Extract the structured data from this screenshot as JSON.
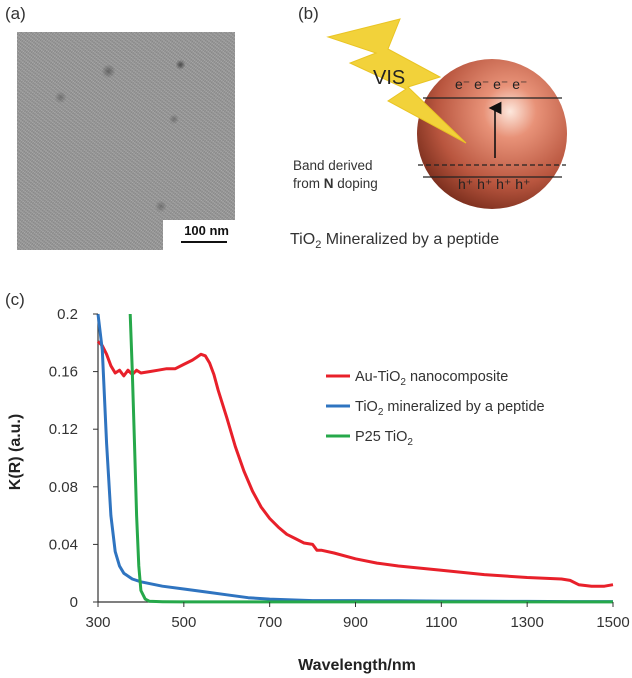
{
  "panels": {
    "a": "(a)",
    "b": "(b)",
    "c": "(c)"
  },
  "tem": {
    "scale_bar": "100 nm"
  },
  "schematic": {
    "light_label": "VIS",
    "band_text_1": "Band derived",
    "band_text_2_pre": "from ",
    "band_text_2_bold": "N",
    "band_text_2_post": " doping",
    "electrons": "e⁻ e⁻ e⁻ e⁻",
    "holes": "h⁺ h⁺ h⁺ h⁺",
    "caption_pre": "TiO",
    "caption_sub": "2",
    "caption_post": " Mineralized by a peptide",
    "colors": {
      "lightning": "#f2d23a",
      "sphere": "#c8604a"
    }
  },
  "chart_data": {
    "type": "line",
    "xlabel": "Wavelength/nm",
    "ylabel": "K(R) (a.u.)",
    "xlim": [
      300,
      1500
    ],
    "ylim": [
      0,
      0.2
    ],
    "xticks": [
      "300",
      "500",
      "700",
      "900",
      "1100",
      "1300",
      "1500"
    ],
    "yticks": [
      "0",
      "0.04",
      "0.08",
      "0.12",
      "0.16",
      "0.2"
    ],
    "grid": false,
    "legend_position": "right",
    "series": [
      {
        "name": "Au-TiO2 nanocomposite",
        "color": "#e8202a",
        "x": [
          300,
          310,
          320,
          330,
          340,
          350,
          360,
          370,
          380,
          390,
          400,
          420,
          440,
          460,
          480,
          500,
          520,
          530,
          540,
          550,
          560,
          570,
          580,
          600,
          620,
          640,
          660,
          680,
          700,
          720,
          740,
          760,
          780,
          800,
          810,
          820,
          850,
          900,
          950,
          1000,
          1100,
          1200,
          1300,
          1380,
          1400,
          1420,
          1450,
          1480,
          1500
        ],
        "y": [
          0.181,
          0.178,
          0.172,
          0.164,
          0.159,
          0.161,
          0.157,
          0.161,
          0.158,
          0.161,
          0.159,
          0.16,
          0.161,
          0.162,
          0.162,
          0.165,
          0.168,
          0.17,
          0.172,
          0.171,
          0.166,
          0.158,
          0.147,
          0.128,
          0.108,
          0.091,
          0.077,
          0.066,
          0.058,
          0.052,
          0.047,
          0.044,
          0.041,
          0.04,
          0.036,
          0.036,
          0.034,
          0.03,
          0.027,
          0.025,
          0.022,
          0.019,
          0.017,
          0.016,
          0.015,
          0.012,
          0.011,
          0.011,
          0.012
        ]
      },
      {
        "name": "TiO2 mineralized by a peptide",
        "color": "#2f74c0",
        "x": [
          300,
          310,
          320,
          330,
          340,
          350,
          360,
          380,
          400,
          450,
          500,
          550,
          600,
          650,
          700,
          800,
          900,
          1000,
          1100,
          1200,
          1300,
          1400,
          1500
        ],
        "y": [
          0.2,
          0.175,
          0.11,
          0.06,
          0.035,
          0.025,
          0.02,
          0.016,
          0.014,
          0.011,
          0.009,
          0.007,
          0.005,
          0.003,
          0.002,
          0.001,
          0.001,
          0.0008,
          0.0006,
          0.0005,
          0.0004,
          0.0003,
          0.0003
        ]
      },
      {
        "name": "P25 TiO2",
        "color": "#26a84a",
        "x": [
          375,
          380,
          385,
          390,
          395,
          400,
          410,
          420,
          450,
          500,
          600,
          800,
          1000,
          1200,
          1500
        ],
        "y": [
          0.2,
          0.16,
          0.11,
          0.06,
          0.025,
          0.008,
          0.002,
          0.0005,
          0.0002,
          0.0001,
          0.0001,
          0.0001,
          0.0001,
          0.0001,
          0.0001
        ]
      }
    ],
    "legend_labels": [
      {
        "pre": "Au-TiO",
        "sub": "2",
        "post": " nanocomposite"
      },
      {
        "pre": "TiO",
        "sub": "2",
        "post": " mineralized by a peptide"
      },
      {
        "pre": "P25 TiO",
        "sub": "2",
        "post": ""
      }
    ]
  }
}
